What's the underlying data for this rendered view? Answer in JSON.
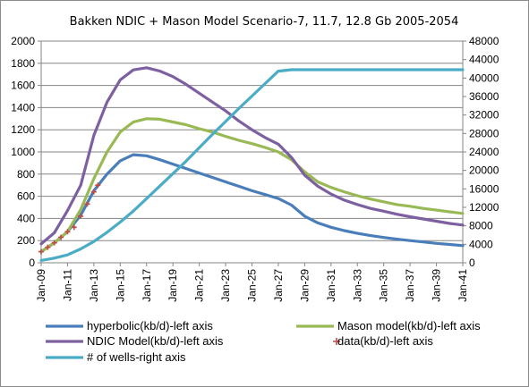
{
  "chart_data": {
    "type": "line",
    "title": "Bakken NDIC + Mason Model Scenario-7, 11.7, 12.8 Gb 2005-2054",
    "x_tick_labels": [
      "Jan-09",
      "Jan-11",
      "Jan-13",
      "Jan-15",
      "Jan-17",
      "Jan-19",
      "Jan-21",
      "Jan-23",
      "Jan-25",
      "Jan-27",
      "Jan-29",
      "Jan-31",
      "Jan-33",
      "Jan-35",
      "Jan-37",
      "Jan-39",
      "Jan-41"
    ],
    "xlim": [
      2009,
      2041
    ],
    "ylim_left": [
      0,
      2000
    ],
    "yticks_left": [
      "0",
      "200",
      "400",
      "600",
      "800",
      "1000",
      "1200",
      "1400",
      "1600",
      "1800",
      "2000"
    ],
    "ylim_right": [
      0,
      48000
    ],
    "yticks_right": [
      "0",
      "4000",
      "8000",
      "12000",
      "16000",
      "20000",
      "24000",
      "28000",
      "32000",
      "36000",
      "40000",
      "44000",
      "48000"
    ],
    "grid": "horizontal",
    "legend_position": "bottom",
    "series": [
      {
        "name": "hyperbolic(kb/d)-left axis",
        "axis": "left",
        "color": "#4a7ebb",
        "style": "line",
        "x": [
          2009,
          2010,
          2011,
          2012,
          2013,
          2014,
          2015,
          2016,
          2017,
          2018,
          2019,
          2020,
          2021,
          2022,
          2023,
          2024,
          2025,
          2026,
          2027,
          2028,
          2029,
          2030,
          2031,
          2032,
          2033,
          2034,
          2035,
          2036,
          2037,
          2038,
          2039,
          2040,
          2041
        ],
        "y": [
          100,
          180,
          280,
          430,
          650,
          800,
          920,
          975,
          965,
          930,
          890,
          850,
          810,
          770,
          730,
          690,
          650,
          615,
          580,
          520,
          420,
          360,
          320,
          290,
          265,
          245,
          228,
          213,
          200,
          188,
          175,
          165,
          155
        ]
      },
      {
        "name": "Mason model(kb/d)-left axis",
        "axis": "left",
        "color": "#98b954",
        "style": "line",
        "x": [
          2009,
          2010,
          2011,
          2012,
          2013,
          2014,
          2015,
          2016,
          2017,
          2018,
          2019,
          2020,
          2021,
          2022,
          2023,
          2024,
          2025,
          2026,
          2027,
          2028,
          2029,
          2030,
          2031,
          2032,
          2033,
          2034,
          2035,
          2036,
          2037,
          2038,
          2039,
          2040,
          2041
        ],
        "y": [
          100,
          180,
          280,
          480,
          760,
          1000,
          1180,
          1270,
          1300,
          1295,
          1270,
          1245,
          1210,
          1180,
          1140,
          1105,
          1075,
          1040,
          1000,
          930,
          820,
          730,
          680,
          640,
          605,
          575,
          550,
          525,
          510,
          490,
          475,
          460,
          445
        ]
      },
      {
        "name": "NDIC Model(kb/d)-left axis",
        "axis": "left",
        "color": "#7d60a0",
        "style": "line",
        "x": [
          2009,
          2010,
          2011,
          2012,
          2013,
          2014,
          2015,
          2016,
          2017,
          2018,
          2019,
          2020,
          2021,
          2022,
          2023,
          2024,
          2025,
          2026,
          2027,
          2028,
          2029,
          2030,
          2031,
          2032,
          2033,
          2034,
          2035,
          2036,
          2037,
          2038,
          2039,
          2040,
          2041
        ],
        "y": [
          170,
          270,
          470,
          700,
          1150,
          1450,
          1650,
          1740,
          1760,
          1730,
          1680,
          1610,
          1530,
          1450,
          1370,
          1280,
          1200,
          1130,
          1070,
          950,
          790,
          690,
          620,
          565,
          525,
          490,
          465,
          438,
          415,
          395,
          375,
          355,
          340
        ]
      },
      {
        "name": "data(kb/d)-left axis",
        "axis": "left",
        "color": "#be4b48",
        "style": "marker",
        "x": [
          2009,
          2009.5,
          2010,
          2010.5,
          2011,
          2011.5,
          2012,
          2012.5,
          2013,
          2013.3
        ],
        "y": [
          100,
          140,
          180,
          230,
          280,
          320,
          420,
          530,
          640,
          700
        ]
      },
      {
        "name": "# of wells-right axis",
        "axis": "right",
        "color": "#4bacc6",
        "style": "line",
        "x": [
          2009,
          2010,
          2011,
          2012,
          2013,
          2014,
          2015,
          2016,
          2017,
          2018,
          2019,
          2020,
          2021,
          2022,
          2023,
          2024,
          2025,
          2026,
          2027,
          2028,
          2029,
          2030,
          2031,
          2032,
          2033,
          2034,
          2035,
          2036,
          2037,
          2038,
          2039,
          2040,
          2041
        ],
        "y": [
          500,
          1000,
          1700,
          3000,
          4600,
          6600,
          8800,
          11200,
          13900,
          16600,
          19300,
          22000,
          24900,
          27800,
          30600,
          33400,
          36100,
          38800,
          41500,
          41800,
          41800,
          41800,
          41800,
          41800,
          41800,
          41800,
          41800,
          41800,
          41800,
          41800,
          41800,
          41800,
          41800
        ]
      }
    ]
  }
}
